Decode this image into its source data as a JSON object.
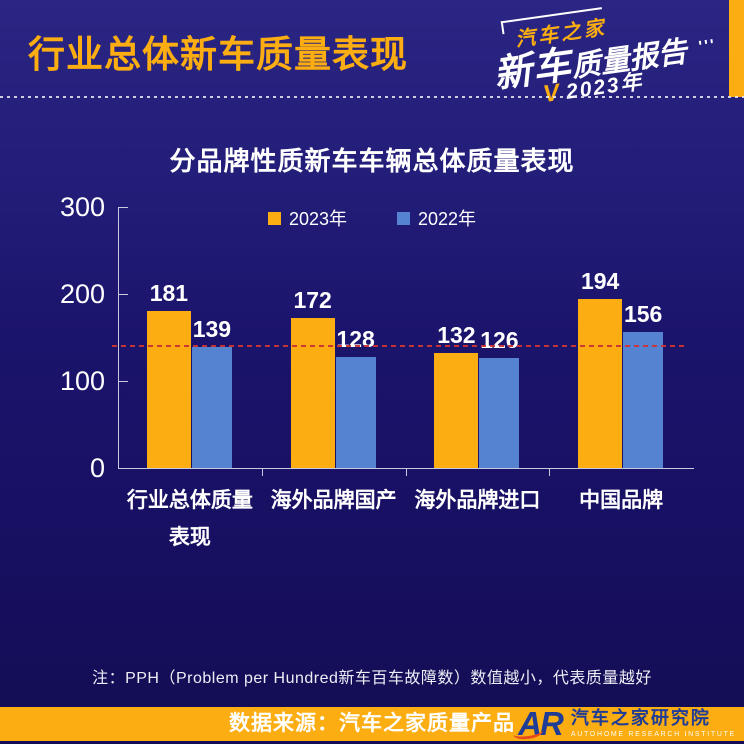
{
  "header": {
    "title": "行业总体新车质量表现",
    "logo": {
      "brand": "汽车之家",
      "report_main": "新车",
      "report_rest": "质量报告",
      "marks": "'''",
      "check": "V",
      "year": "2023年"
    }
  },
  "chart_data": {
    "type": "bar",
    "title": "分品牌性质新车车辆总体质量表现",
    "categories": [
      "行业总体质量表现",
      "海外品牌国产",
      "海外品牌进口",
      "中国品牌"
    ],
    "category_lines": [
      [
        "行业总体质量",
        "表现"
      ],
      [
        "海外品牌国产"
      ],
      [
        "海外品牌进口"
      ],
      [
        "中国品牌"
      ]
    ],
    "series": [
      {
        "name": "2023年",
        "color": "#FBAD11",
        "values": [
          181,
          172,
          132,
          194
        ]
      },
      {
        "name": "2022年",
        "color": "#5583D1",
        "values": [
          139,
          128,
          126,
          156
        ]
      }
    ],
    "ylim": [
      0,
      300
    ],
    "yticks": [
      0,
      100,
      200,
      300
    ],
    "reference_line": {
      "value": 140,
      "color": "#CC3333",
      "style": "dashed"
    },
    "legend_position": "top-center",
    "grid": false,
    "ylabel": "",
    "xlabel": ""
  },
  "note": "注：PPH（Problem per Hundred新车百车故障数）数值越小，代表质量越好",
  "footer": {
    "source": "数据来源：汽车之家质量产品",
    "logo_text": "AR",
    "org": "汽车之家研究院",
    "org_en": "AUTOHOME RESEARCH INSTITUTE"
  },
  "colors": {
    "background": "#1B146C",
    "accent_orange": "#FBAD11",
    "bar_blue": "#5583D1",
    "reference_red": "#CC3333",
    "axis": "#C9C9DF",
    "logo_blue": "#1F3C96",
    "swoosh": "#E8491D"
  }
}
